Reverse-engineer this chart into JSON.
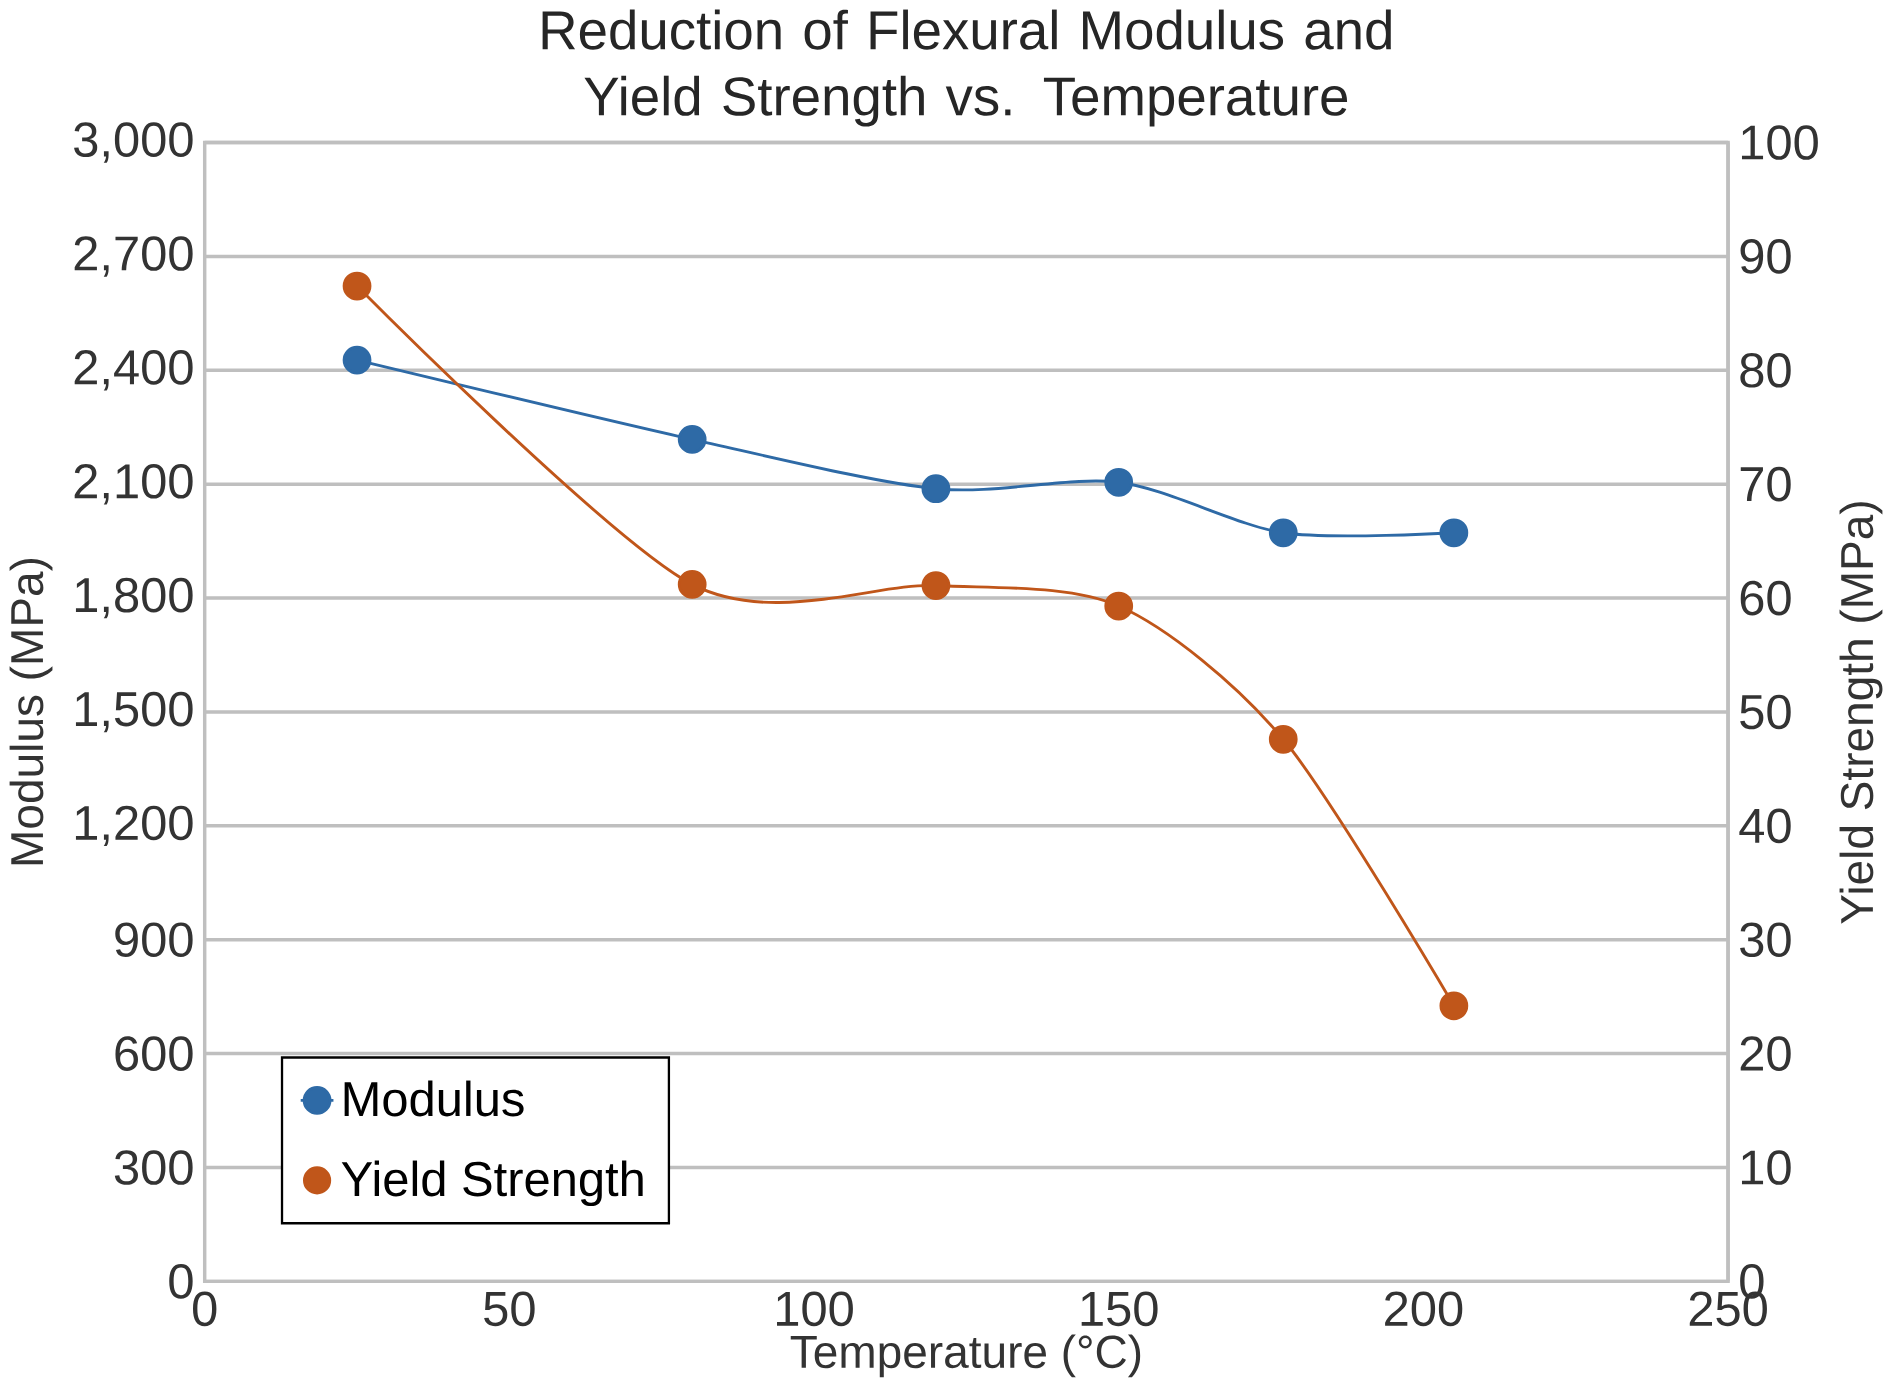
{
  "chart_data": {
    "type": "line",
    "title": "Reduction of Flexural Modulus and Yield Strength vs. Temperature",
    "xlabel": "Temperature (°C)",
    "ylabel": "Modulus (MPa)",
    "y2label": "Yield Strength (MPa)",
    "x": [
      25,
      80,
      120,
      150,
      177,
      205
    ],
    "series": [
      {
        "name": "Modulus",
        "color": "#2e6aa6",
        "values": [
          2427,
          2218,
          2088,
          2105,
          1972,
          1972
        ]
      },
      {
        "name": "Yield Strength",
        "color": "#c0561a",
        "axis": "y2",
        "values": [
          87.4,
          61.2,
          61.1,
          59.3,
          47.6,
          24.2
        ]
      }
    ],
    "xlim": [
      0,
      250
    ],
    "xticks": [
      0,
      50,
      100,
      150,
      200,
      250
    ],
    "ylim": [
      0,
      3000
    ],
    "yticks": [
      0,
      300,
      600,
      900,
      {
        "value": 1200,
        "label": "1,200"
      },
      {
        "value": 1500,
        "label": "1,500"
      },
      {
        "value": 1800,
        "label": "1,800"
      },
      {
        "value": 2100,
        "label": "2,100"
      },
      {
        "value": 2400,
        "label": "2,400"
      },
      {
        "value": 2700,
        "label": "2,700"
      },
      {
        "value": 3000,
        "label": "3,000"
      }
    ],
    "y2lim": [
      0,
      100
    ],
    "y2ticks": [
      0,
      10,
      20,
      30,
      40,
      50,
      60,
      70,
      80,
      90,
      100
    ],
    "grid": "y",
    "legend": "bottom left",
    "marker": "circle",
    "line_style": "solid"
  }
}
